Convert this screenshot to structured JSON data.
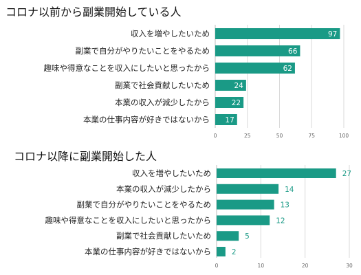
{
  "colors": {
    "bar": "#1a9a86",
    "grid": "#d9d9d9",
    "axis": "#bdbdbd"
  },
  "chart_data": [
    {
      "type": "bar",
      "orientation": "horizontal",
      "title": "コロナ以前から副業開始している人",
      "categories": [
        "収入を増やしたいため",
        "副業で自分がやりたいことをやるため",
        "趣味や得意なことを収入にしたいと思ったから",
        "副業で社会貢献したいため",
        "本業の収入が減少したから",
        "本業の仕事内容が好きではないから"
      ],
      "values": [
        97,
        66,
        62,
        24,
        22,
        17
      ],
      "xlim": [
        0,
        100
      ],
      "xticks": [
        "0",
        "25",
        "50",
        "75",
        "100"
      ],
      "value_labels": "inside",
      "grid": true
    },
    {
      "type": "bar",
      "orientation": "horizontal",
      "title": "コロナ以降に副業開始した人",
      "categories": [
        "収入を増やしたいため",
        "本業の収入が減少したから",
        "副業で自分がやりたいことをやるため",
        "趣味や得意なことを収入にしたいと思ったから",
        "副業で社会貢献したいため",
        "本業の仕事内容が好きではないから"
      ],
      "values": [
        27,
        14,
        13,
        12,
        5,
        2
      ],
      "xlim": [
        0,
        30
      ],
      "xticks": [
        "0",
        "10",
        "20",
        "30"
      ],
      "value_labels": "outside",
      "grid": true
    }
  ]
}
